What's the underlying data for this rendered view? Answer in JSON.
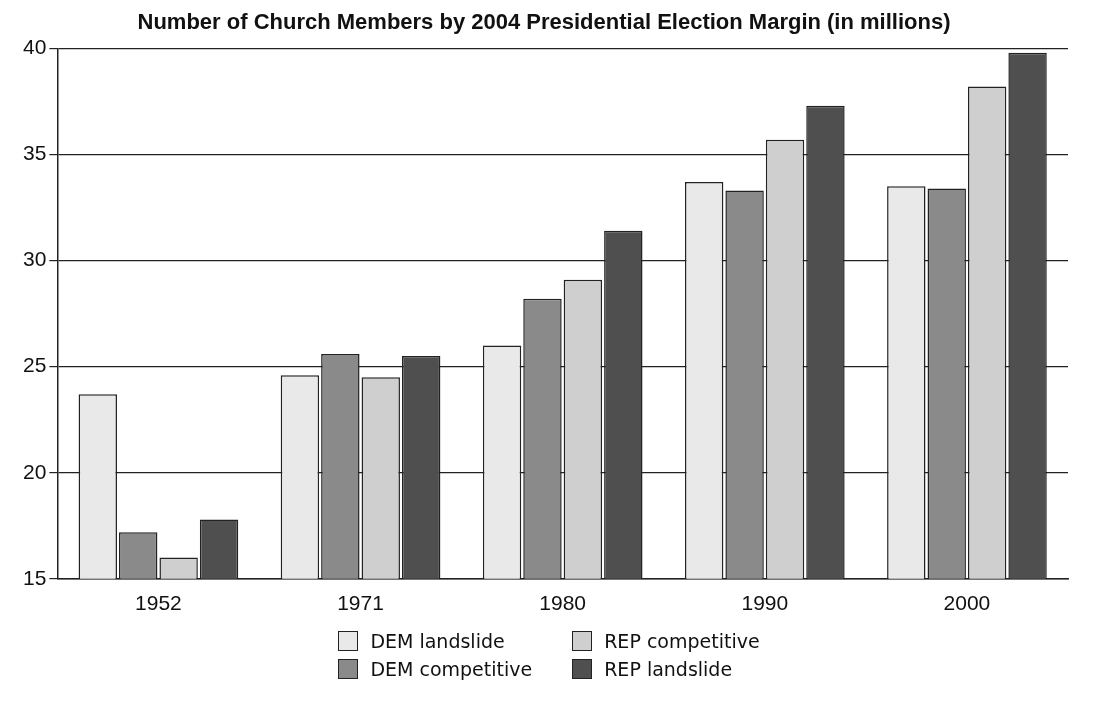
{
  "chart_data": {
    "type": "bar",
    "title": "Number of Church Members by 2004 Presidential Election Margin (in millions)",
    "categories": [
      "1952",
      "1971",
      "1980",
      "1990",
      "2000"
    ],
    "series": [
      {
        "name": "DEM landslide",
        "color": "#e9e9e9",
        "values": [
          23.7,
          24.6,
          26.0,
          33.7,
          33.5
        ]
      },
      {
        "name": "DEM competitive",
        "color": "#8a8a8a",
        "values": [
          17.2,
          25.6,
          28.2,
          33.3,
          33.4
        ]
      },
      {
        "name": "REP competitive",
        "color": "#cfcfcf",
        "values": [
          16.0,
          24.5,
          29.1,
          35.7,
          38.2
        ]
      },
      {
        "name": "REP landslide",
        "color": "#4f4f4f",
        "values": [
          17.8,
          25.5,
          31.4,
          37.3,
          39.8
        ]
      }
    ],
    "ylim": [
      15,
      40
    ],
    "yticks": [
      15,
      20,
      25,
      30,
      35,
      40
    ],
    "grid": "y",
    "legend": "bottom"
  }
}
